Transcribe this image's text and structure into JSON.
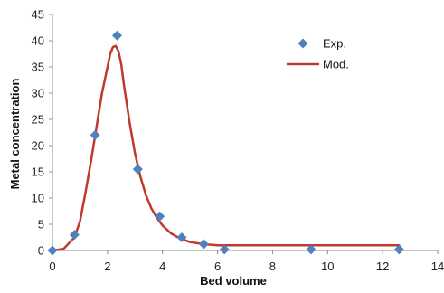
{
  "chart_data": {
    "type": "scatter",
    "title": "",
    "xlabel": "Bed volume",
    "ylabel": "Metal concentration",
    "xlim": [
      0,
      14
    ],
    "ylim": [
      0,
      45
    ],
    "x_ticks": [
      0,
      2,
      4,
      6,
      8,
      10,
      12,
      14
    ],
    "y_ticks": [
      0,
      5,
      10,
      15,
      20,
      25,
      30,
      35,
      40,
      45
    ],
    "grid": false,
    "legend_position": "top-right",
    "series": [
      {
        "name": "Exp.",
        "kind": "markers",
        "marker": "diamond",
        "color": "#4F81BD",
        "x": [
          0.0,
          0.8,
          1.55,
          2.35,
          3.1,
          3.9,
          4.7,
          5.5,
          6.25,
          9.4,
          12.6
        ],
        "y": [
          0.0,
          3.0,
          22.0,
          41.0,
          15.5,
          6.5,
          2.5,
          1.2,
          0.2,
          0.2,
          0.2
        ]
      },
      {
        "name": "Mod.",
        "kind": "line",
        "color": "#C0392B",
        "x": [
          0.0,
          0.4,
          0.8,
          1.0,
          1.2,
          1.4,
          1.6,
          1.8,
          2.0,
          2.1,
          2.2,
          2.3,
          2.4,
          2.5,
          2.6,
          2.8,
          3.0,
          3.2,
          3.4,
          3.6,
          3.8,
          4.0,
          4.3,
          4.6,
          5.0,
          5.5,
          6.0,
          7.0,
          8.0,
          10.0,
          12.6
        ],
        "y": [
          0.0,
          0.3,
          2.5,
          5.5,
          11.0,
          17.0,
          23.5,
          30.0,
          35.0,
          37.5,
          38.8,
          39.0,
          38.0,
          35.5,
          31.5,
          24.5,
          18.5,
          14.0,
          10.5,
          8.0,
          6.2,
          4.8,
          3.3,
          2.4,
          1.6,
          1.2,
          1.0,
          1.0,
          1.0,
          1.0,
          1.0
        ]
      }
    ]
  }
}
